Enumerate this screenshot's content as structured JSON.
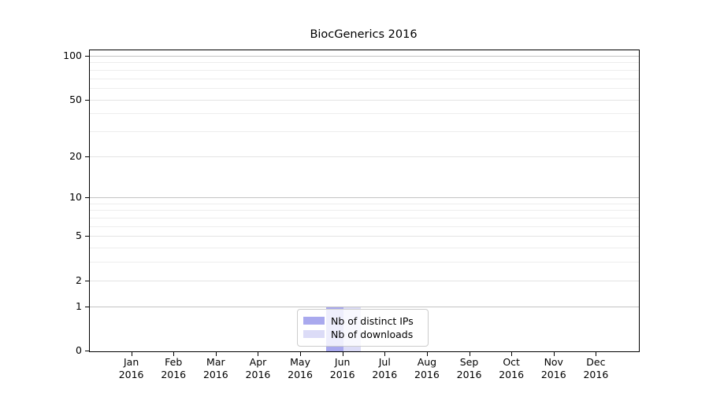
{
  "chart_data": {
    "type": "bar",
    "title": "BiocGenerics 2016",
    "x_axis": {
      "months": [
        "Jan",
        "Feb",
        "Mar",
        "Apr",
        "May",
        "Jun",
        "Jul",
        "Aug",
        "Sep",
        "Oct",
        "Nov",
        "Dec"
      ],
      "year": "2016"
    },
    "y_axis": {
      "scale": "log10(1+x)",
      "tick_labels": [
        "0",
        "1",
        "2",
        "5",
        "10",
        "20",
        "50",
        "100"
      ],
      "tick_values": [
        0,
        1,
        2,
        5,
        10,
        20,
        50,
        100
      ],
      "major_gridlines": [
        1,
        10,
        100
      ],
      "minor_gridlines": [
        2,
        3,
        4,
        5,
        6,
        7,
        8,
        9,
        20,
        30,
        40,
        50,
        60,
        70,
        80,
        90
      ],
      "max": 100
    },
    "series": [
      {
        "name": "Nb of distinct IPs",
        "color": "#a9a9ee",
        "values": [
          0,
          0,
          0,
          0,
          0,
          1,
          0,
          0,
          0,
          0,
          0,
          0
        ]
      },
      {
        "name": "Nb of downloads",
        "color": "#dcdcf7",
        "values": [
          0,
          0,
          0,
          0,
          0,
          1,
          0,
          0,
          0,
          0,
          0,
          0
        ]
      }
    ],
    "legend": {
      "position": "lower center",
      "entries": [
        "Nb of distinct IPs",
        "Nb of downloads"
      ]
    },
    "colors": {
      "grid_major": "#c3c3c3",
      "grid_labeled_minor": "#e3e3e3",
      "grid_minor": "#ededed",
      "axis": "#000000",
      "text": "#000000",
      "background": "#ffffff"
    }
  }
}
